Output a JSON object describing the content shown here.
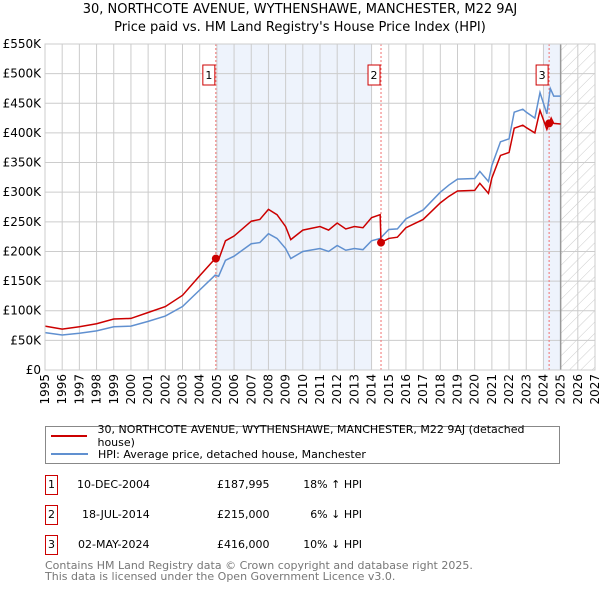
{
  "chart_data": {
    "type": "line",
    "title": "30, NORTHCOTE AVENUE, WYTHENSHAWE, MANCHESTER, M22 9AJ",
    "subtitle": "Price paid vs. HM Land Registry's House Price Index (HPI)",
    "xlim": [
      1995,
      2027
    ],
    "ylim": [
      0,
      550000
    ],
    "x_ticks": [
      "1995",
      "1996",
      "1997",
      "1998",
      "1999",
      "2000",
      "2001",
      "2002",
      "2003",
      "2004",
      "2005",
      "2006",
      "2007",
      "2008",
      "2009",
      "2010",
      "2011",
      "2012",
      "2013",
      "2014",
      "2015",
      "2016",
      "2017",
      "2018",
      "2019",
      "2020",
      "2021",
      "2022",
      "2023",
      "2024",
      "2025",
      "2026",
      "2027"
    ],
    "y_ticks": [
      "£0",
      "£50K",
      "£100K",
      "£150K",
      "£200K",
      "£250K",
      "£300K",
      "£350K",
      "£400K",
      "£450K",
      "£500K",
      "£550K"
    ],
    "grid": true,
    "series": [
      {
        "name": "30, NORTHCOTE AVENUE, WYTHENSHAWE, MANCHESTER, M22 9AJ (detached house)",
        "color": "#cc0000",
        "points": [
          [
            1995,
            74
          ],
          [
            1996,
            69
          ],
          [
            1997,
            73
          ],
          [
            1998,
            78
          ],
          [
            1999,
            86
          ],
          [
            2000,
            87
          ],
          [
            2001,
            97
          ],
          [
            2002,
            107
          ],
          [
            2003,
            126
          ],
          [
            2004,
            159
          ],
          [
            2004.9,
            188
          ],
          [
            2005.1,
            186
          ],
          [
            2005.5,
            218
          ],
          [
            2006,
            226
          ],
          [
            2007,
            251
          ],
          [
            2007.5,
            254
          ],
          [
            2008,
            271
          ],
          [
            2008.5,
            262
          ],
          [
            2009,
            242
          ],
          [
            2009.3,
            220
          ],
          [
            2010,
            236
          ],
          [
            2011,
            242
          ],
          [
            2011.5,
            236
          ],
          [
            2012,
            248
          ],
          [
            2012.5,
            238
          ],
          [
            2013,
            242
          ],
          [
            2013.5,
            240
          ],
          [
            2014,
            257
          ],
          [
            2014.5,
            262
          ],
          [
            2014.55,
            215
          ],
          [
            2015,
            222
          ],
          [
            2015.5,
            224
          ],
          [
            2016,
            240
          ],
          [
            2017,
            254
          ],
          [
            2017.5,
            268
          ],
          [
            2018,
            282
          ],
          [
            2018.5,
            293
          ],
          [
            2019,
            302
          ],
          [
            2020,
            303
          ],
          [
            2020.3,
            315
          ],
          [
            2020.8,
            298
          ],
          [
            2021,
            324
          ],
          [
            2021.5,
            362
          ],
          [
            2022,
            367
          ],
          [
            2022.3,
            408
          ],
          [
            2022.8,
            413
          ],
          [
            2023,
            409
          ],
          [
            2023.5,
            400
          ],
          [
            2023.8,
            438
          ],
          [
            2024.2,
            406
          ],
          [
            2024.33,
            416
          ],
          [
            2024.45,
            425
          ],
          [
            2024.6,
            416
          ],
          [
            2025,
            415
          ]
        ]
      },
      {
        "name": "HPI: Average price, detached house, Manchester",
        "color": "#6090d0",
        "points": [
          [
            1995,
            63
          ],
          [
            1996,
            59
          ],
          [
            1997,
            62
          ],
          [
            1998,
            66
          ],
          [
            1999,
            73
          ],
          [
            2000,
            74
          ],
          [
            2001,
            82
          ],
          [
            2002,
            91
          ],
          [
            2003,
            107
          ],
          [
            2004,
            135
          ],
          [
            2004.9,
            160
          ],
          [
            2005.1,
            158
          ],
          [
            2005.5,
            185
          ],
          [
            2006,
            192
          ],
          [
            2007,
            213
          ],
          [
            2007.5,
            215
          ],
          [
            2008,
            230
          ],
          [
            2008.5,
            222
          ],
          [
            2009,
            205
          ],
          [
            2009.3,
            188
          ],
          [
            2010,
            200
          ],
          [
            2011,
            205
          ],
          [
            2011.5,
            200
          ],
          [
            2012,
            210
          ],
          [
            2012.5,
            202
          ],
          [
            2013,
            205
          ],
          [
            2013.5,
            203
          ],
          [
            2014,
            218
          ],
          [
            2014.5,
            222
          ],
          [
            2015,
            237
          ],
          [
            2015.5,
            238
          ],
          [
            2016,
            255
          ],
          [
            2017,
            270
          ],
          [
            2017.5,
            285
          ],
          [
            2018,
            300
          ],
          [
            2018.5,
            312
          ],
          [
            2019,
            322
          ],
          [
            2020,
            323
          ],
          [
            2020.3,
            335
          ],
          [
            2020.8,
            318
          ],
          [
            2021,
            345
          ],
          [
            2021.5,
            385
          ],
          [
            2022,
            390
          ],
          [
            2022.3,
            435
          ],
          [
            2022.8,
            440
          ],
          [
            2023,
            435
          ],
          [
            2023.5,
            425
          ],
          [
            2023.8,
            468
          ],
          [
            2024.2,
            432
          ],
          [
            2024.4,
            475
          ],
          [
            2024.6,
            462
          ],
          [
            2025,
            462
          ]
        ]
      }
    ],
    "sales": [
      {
        "label": "1",
        "x": 2004.94,
        "y": 187995
      },
      {
        "label": "2",
        "x": 2014.55,
        "y": 215000
      },
      {
        "label": "3",
        "x": 2024.33,
        "y": 416000
      }
    ],
    "shaded_ranges": [
      [
        2005,
        2014
      ],
      [
        2024,
        2025
      ]
    ],
    "forecast_from": 2025
  },
  "legend": {
    "red": "30, NORTHCOTE AVENUE, WYTHENSHAWE, MANCHESTER, M22 9AJ (detached house)",
    "blue": "HPI: Average price, detached house, Manchester"
  },
  "transactions": [
    {
      "n": "1",
      "date": "10-DEC-2004",
      "price": "£187,995",
      "hpi": "18% ↑ HPI"
    },
    {
      "n": "2",
      "date": "18-JUL-2014",
      "price": "£215,000",
      "hpi": "6% ↓ HPI"
    },
    {
      "n": "3",
      "date": "02-MAY-2024",
      "price": "£416,000",
      "hpi": "10% ↓ HPI"
    }
  ],
  "footer": {
    "line1": "Contains HM Land Registry data © Crown copyright and database right 2025.",
    "line2": "This data is licensed under the Open Government Licence v3.0."
  }
}
